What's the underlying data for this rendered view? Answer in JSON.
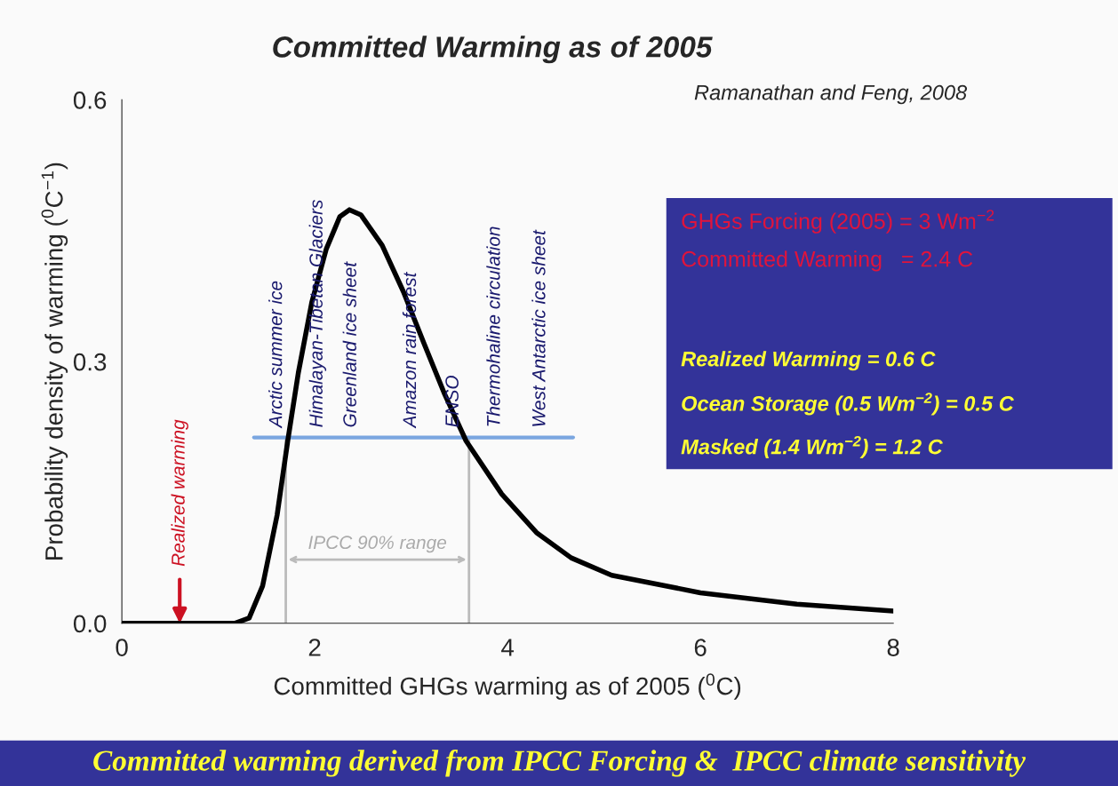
{
  "chart_data": {
    "type": "line",
    "title": "Committed Warming as of 2005",
    "xlabel": "Committed GHGs warming as of 2005 ($^{0}$C)",
    "ylabel": "Probability density of warming ($^{0}$C$^{−1}$)",
    "xlim": [
      0,
      8
    ],
    "xticks": [
      0,
      2,
      4,
      6,
      8
    ],
    "ylim": [
      0,
      0.6
    ],
    "yticks": [
      {
        "value": 0,
        "label": "0.0"
      },
      0.3,
      0.6
    ],
    "marker": "none",
    "line_style": "solid",
    "series": [
      {
        "color": "#000000",
        "x": [
          0,
          1.17,
          1.32,
          1.46,
          1.61,
          1.72,
          1.83,
          1.97,
          2.12,
          2.26,
          2.36,
          2.48,
          2.7,
          2.92,
          3.14,
          3.35,
          3.57,
          3.94,
          4.3,
          4.66,
          5.08,
          6,
          7,
          8
        ],
        "values": [
          0,
          0,
          0.006,
          0.043,
          0.124,
          0.209,
          0.287,
          0.368,
          0.429,
          0.466,
          0.474,
          0.468,
          0.433,
          0.38,
          0.319,
          0.262,
          0.209,
          0.148,
          0.104,
          0.075,
          0.055,
          0.035,
          0.022,
          0.014
        ]
      },
      {
        "color": "#7aa6e0",
        "x": [
          1.37,
          4.68
        ],
        "values": [
          0.213,
          0.213
        ]
      }
    ],
    "ref_lines": [
      {
        "axis": "x",
        "value": 1.7,
        "color": "#bbbbbb"
      },
      {
        "axis": "x",
        "value": 3.6,
        "color": "#bbbbbb"
      }
    ],
    "annotations": [
      "Ramanathan and Feng, 2008",
      "GHGs Forcing (2005) = 3 Wm$^{−2}$",
      "Committed Warming   = 2.4 C",
      "Realized Warming = 0.6 C",
      "Ocean Storage (0.5 Wm$^{−2}$) = 0.5 C",
      "Masked (1.4 Wm$^{−2}$) = 1.2 C",
      "Committed warming derived from IPCC Forcing &  IPCC climate sensitivity",
      "IPCC 90% range",
      {
        "text": "Realized warming",
        "x": 0.6,
        "y": 0
      },
      {
        "text": "Arctic summer ice",
        "x": 1.61,
        "y": 0.213
      },
      {
        "text": "Himalayan-Tibetan Glaciers",
        "x": 2.03,
        "y": 0.213
      },
      {
        "text": "Greenland ice sheet",
        "x": 2.38,
        "y": 0.213
      },
      {
        "text": "Amazon rain forest",
        "x": 3.0,
        "y": 0.213
      },
      {
        "text": "ENSO",
        "x": 3.44,
        "y": 0.213
      },
      {
        "text": "Thermohaline circulation",
        "x": 3.87,
        "y": 0.213
      },
      {
        "text": "West Antarctic ice sheet",
        "x": 4.34,
        "y": 0.213
      }
    ]
  }
}
